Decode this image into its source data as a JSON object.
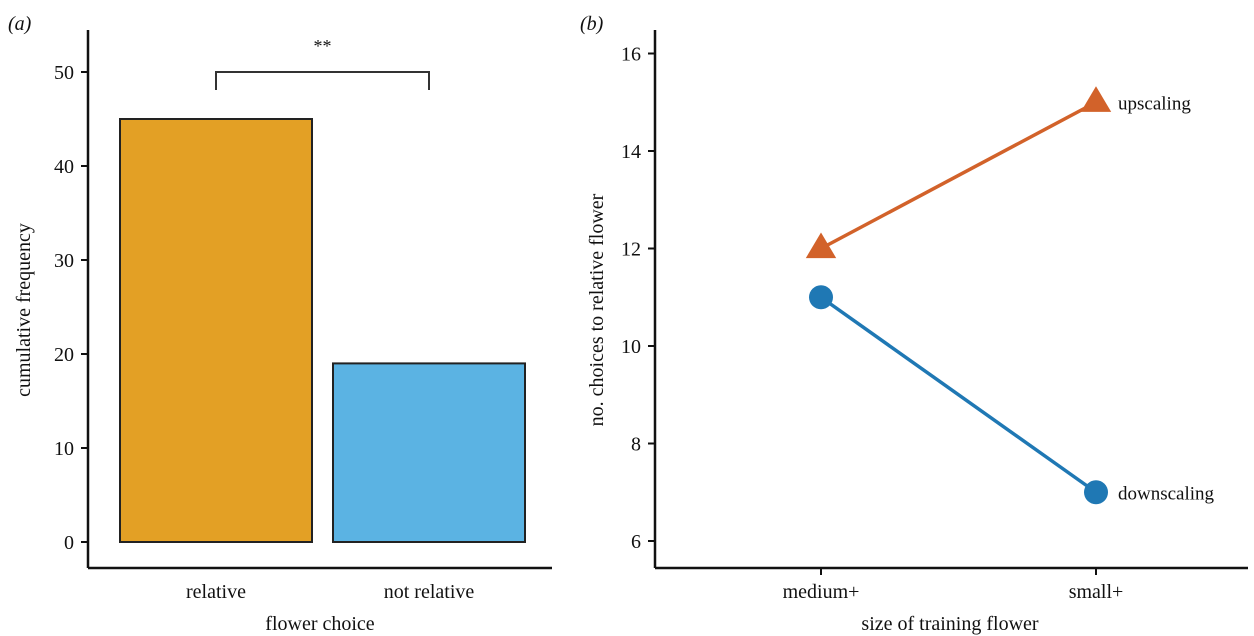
{
  "chart_data": [
    {
      "type": "bar",
      "panel_label": "(a)",
      "categories": [
        "relative",
        "not relative"
      ],
      "values": [
        45,
        19
      ],
      "colors": [
        "#E3A025",
        "#5BB3E3"
      ],
      "xlabel": "flower choice",
      "ylabel": "cumulative frequency",
      "ylim": [
        0,
        54
      ],
      "yticks": [
        "0",
        "10",
        "20",
        "30",
        "40",
        "50"
      ],
      "significance": "**",
      "grid": false
    },
    {
      "type": "line",
      "panel_label": "(b)",
      "categories": [
        "medium+",
        "small+"
      ],
      "series": [
        {
          "name": "upscaling",
          "values": [
            12,
            15
          ],
          "color": "#D2622A",
          "marker": "triangle"
        },
        {
          "name": "downscaling",
          "values": [
            11,
            7
          ],
          "color": "#1F78B4",
          "marker": "circle"
        }
      ],
      "xlabel": "size of training flower",
      "ylabel": "no. choices to relative flower",
      "ylim": [
        5.4,
        16.8
      ],
      "yticks": [
        "6",
        "8",
        "10",
        "12",
        "14",
        "16"
      ],
      "grid": false
    }
  ]
}
